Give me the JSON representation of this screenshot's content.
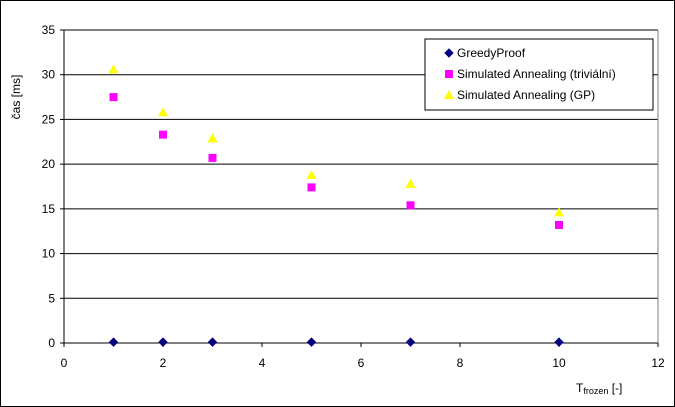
{
  "chart_data": {
    "type": "scatter",
    "title": "",
    "xlabel": {
      "main": "T",
      "subscript": "frozen",
      "suffix": " [-]"
    },
    "ylabel": "čas [ms]",
    "xlim": [
      0,
      12
    ],
    "ylim": [
      0,
      35
    ],
    "x_ticks": [
      0,
      2,
      4,
      6,
      8,
      10,
      12
    ],
    "y_ticks": [
      0,
      5,
      10,
      15,
      20,
      25,
      30,
      35
    ],
    "grid": "horizontal major",
    "legend_position": "top-right",
    "series": [
      {
        "name": "GreedyProof",
        "marker": "diamond",
        "color": "#000080",
        "points": [
          [
            1,
            0.1
          ],
          [
            2,
            0.1
          ],
          [
            3,
            0.1
          ],
          [
            5,
            0.1
          ],
          [
            7,
            0.1
          ],
          [
            10,
            0.1
          ]
        ]
      },
      {
        "name": "Simulated Annealing (triviální)",
        "marker": "square",
        "color": "#FF00FF",
        "points": [
          [
            1,
            27.5
          ],
          [
            2,
            23.3
          ],
          [
            3,
            20.7
          ],
          [
            5,
            17.4
          ],
          [
            7,
            15.4
          ],
          [
            10,
            13.2
          ]
        ]
      },
      {
        "name": "Simulated Annealing (GP)",
        "marker": "triangle",
        "color": "#FFFF00",
        "points": [
          [
            1,
            30.6
          ],
          [
            2,
            25.8
          ],
          [
            3,
            22.9
          ],
          [
            5,
            18.8
          ],
          [
            7,
            17.8
          ],
          [
            10,
            14.6
          ]
        ]
      }
    ]
  }
}
